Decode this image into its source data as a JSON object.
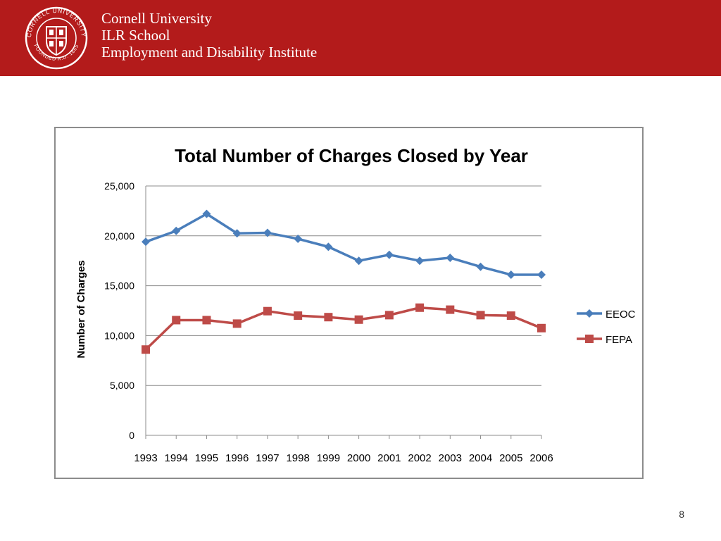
{
  "header": {
    "seal_text": "CORNELL UNIVERSITY",
    "seal_founded": "FOUNDED A.D. 1865",
    "line1": "Cornell University",
    "line2": "ILR School",
    "line3": "Employment and Disability Institute"
  },
  "colors": {
    "header_bg": "#b31b1b",
    "eeoc": "#4a7ebb",
    "fepa": "#be4b48"
  },
  "chart_data": {
    "type": "line",
    "title": "Total Number of Charges Closed by Year",
    "xlabel": "",
    "ylabel": "Number of Charges",
    "categories": [
      "1993",
      "1994",
      "1995",
      "1996",
      "1997",
      "1998",
      "1999",
      "2000",
      "2001",
      "2002",
      "2003",
      "2004",
      "2005",
      "2006"
    ],
    "ylim": [
      0,
      25000
    ],
    "yticks": [
      "0",
      "5,000",
      "10,000",
      "15,000",
      "20,000",
      "25,000"
    ],
    "grid": true,
    "legend_position": "right",
    "series": [
      {
        "name": "EEOC",
        "marker": "diamond",
        "values": [
          19400,
          20500,
          22200,
          20250,
          20300,
          19700,
          18900,
          17500,
          18100,
          17500,
          17800,
          16900,
          16100,
          16100
        ]
      },
      {
        "name": "FEPA",
        "marker": "square",
        "values": [
          8600,
          11550,
          11550,
          11200,
          12450,
          12000,
          11850,
          11600,
          12050,
          12800,
          12600,
          12050,
          12000,
          10750
        ]
      }
    ]
  },
  "page_number": "8"
}
